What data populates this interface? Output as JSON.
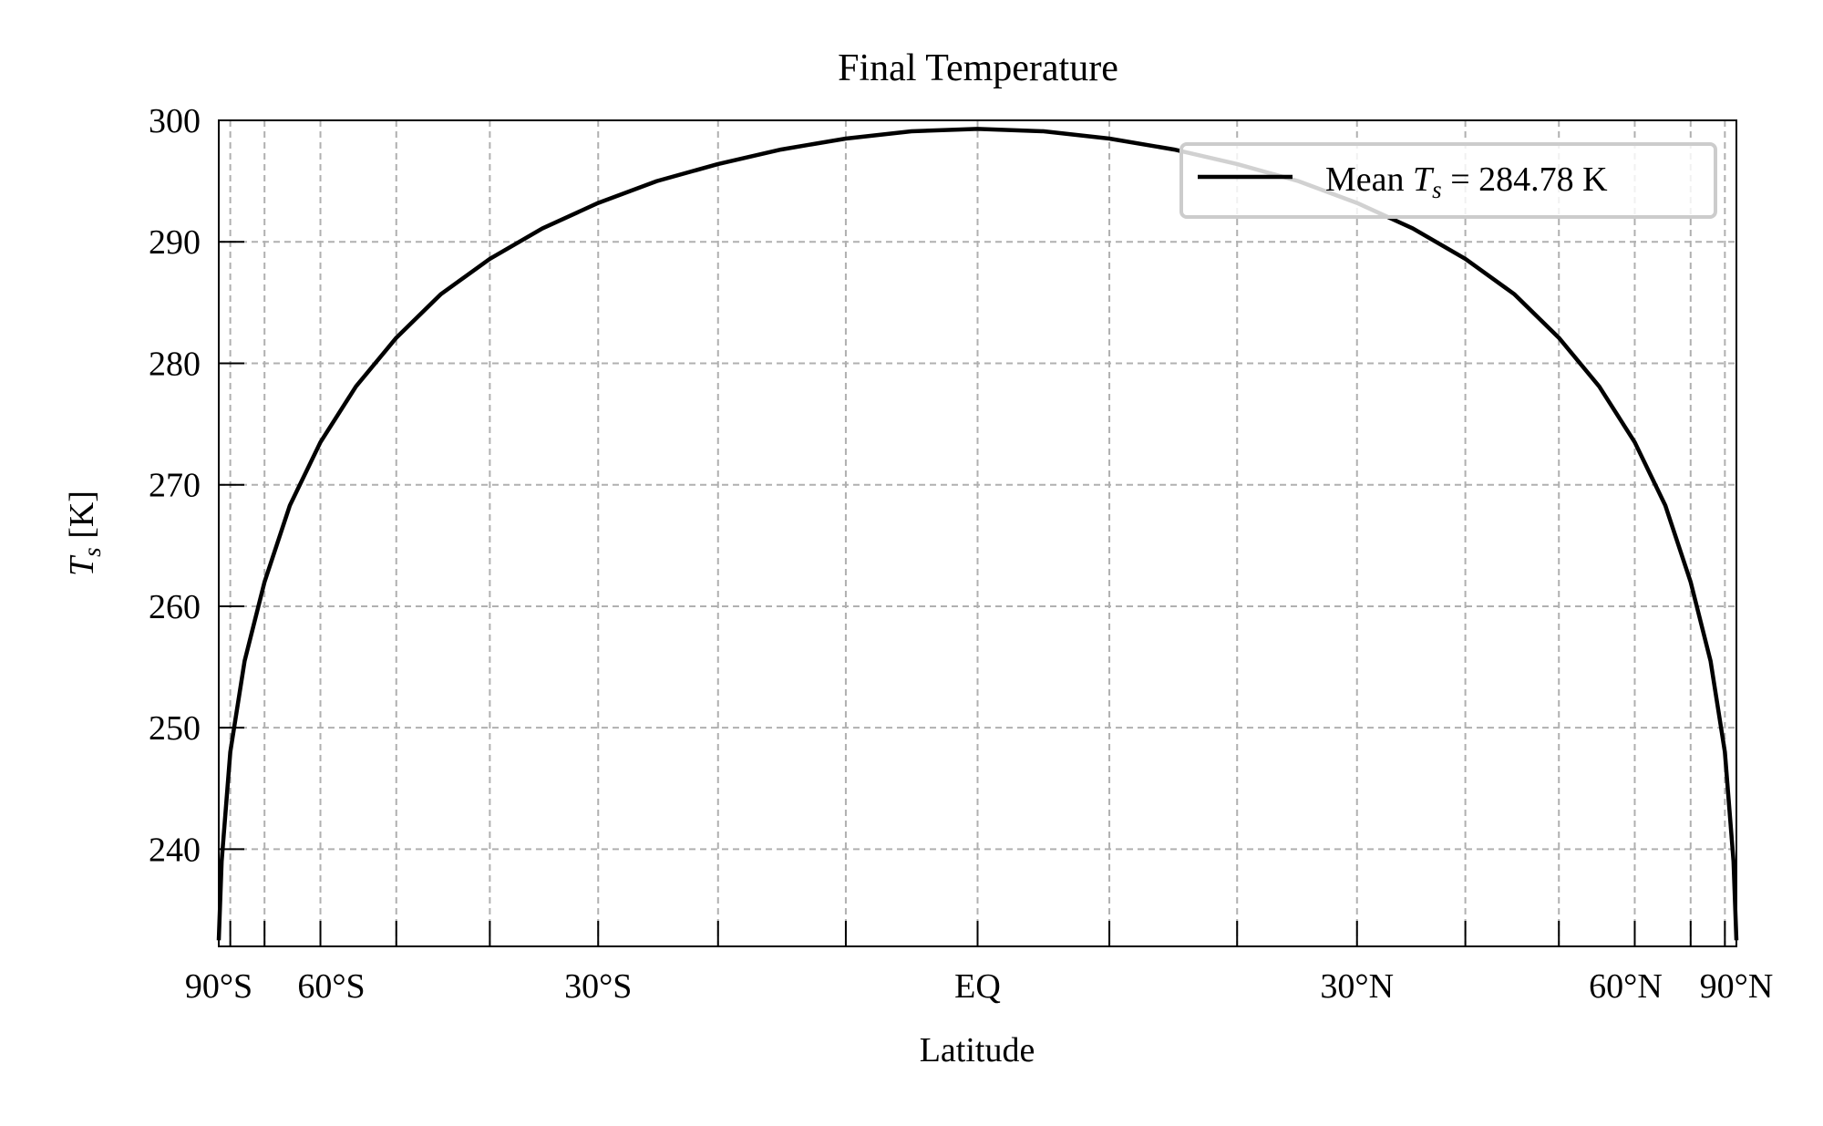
{
  "chart_data": {
    "type": "line",
    "title": "Final Temperature",
    "xlabel": "Latitude",
    "ylabel_main": "T",
    "ylabel_sub": "s",
    "ylabel_unit": "[K]",
    "x_axis_scale": "sine of latitude",
    "xlim": [
      -90,
      90
    ],
    "ylim": [
      232,
      300
    ],
    "yticks": [
      240,
      250,
      260,
      270,
      280,
      290,
      300
    ],
    "xticks": [
      {
        "value": -90,
        "label": "90°S"
      },
      {
        "value": -60,
        "label": "60°S"
      },
      {
        "value": -30,
        "label": "30°S"
      },
      {
        "value": 0,
        "label": "EQ"
      },
      {
        "value": 30,
        "label": "30°N"
      },
      {
        "value": 60,
        "label": "60°N"
      },
      {
        "value": 90,
        "label": "90°N"
      }
    ],
    "minor_xticks": [
      -80,
      -70,
      -50,
      -40,
      -20,
      -10,
      10,
      20,
      40,
      50,
      70,
      80
    ],
    "grid": true,
    "legend_position": "upper-right",
    "series": [
      {
        "name_prefix": "Mean ",
        "name_var": "T",
        "name_sub": "s",
        "name_suffix": " = 284.78 K",
        "color": "#000000",
        "x": [
          -90,
          -85,
          -80,
          -75,
          -70,
          -65,
          -60,
          -55,
          -50,
          -45,
          -40,
          -35,
          -30,
          -25,
          -20,
          -15,
          -10,
          -5,
          0,
          5,
          10,
          15,
          20,
          25,
          30,
          35,
          40,
          45,
          50,
          55,
          60,
          65,
          70,
          75,
          80,
          85,
          90
        ],
        "y": [
          232.5,
          239,
          248,
          255.5,
          262,
          268.3,
          273.5,
          278.1,
          282.1,
          285.7,
          288.6,
          291.1,
          293.2,
          295,
          296.4,
          297.6,
          298.5,
          299.1,
          299.3,
          299.1,
          298.5,
          297.6,
          296.4,
          295,
          293.2,
          291.1,
          288.6,
          285.7,
          282.1,
          278.1,
          273.5,
          268.3,
          262,
          255.5,
          248,
          239,
          232.5
        ]
      }
    ]
  }
}
